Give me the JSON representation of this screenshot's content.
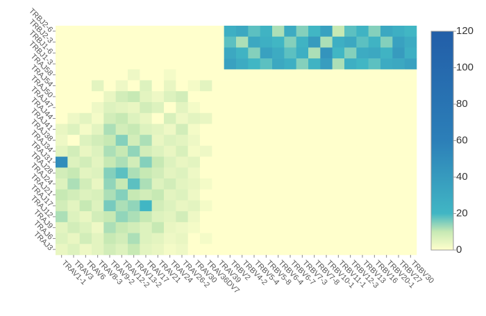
{
  "chart_data": {
    "type": "heatmap",
    "x": [
      "TRAV1-1",
      "TRAV3",
      "TRAV6",
      "TRAV8-3",
      "TRAV9-2",
      "TRAV12-2",
      "TRAV13-2",
      "TRAV17",
      "TRAV21",
      "TRAV24",
      "TRAV26-2",
      "TRAV30",
      "TRAV36DV7",
      "TRAV39",
      "TRBV2",
      "TRBV4-2",
      "TRBV5-4",
      "TRBV5-8",
      "TRBV6-4",
      "TRBV6-7",
      "TRBV7-3",
      "TRBV7-8",
      "TRBV10-1",
      "TRBV11-1",
      "TRBV12-3",
      "TRBV13",
      "TRBV16",
      "TRBV20-1",
      "TRBV27",
      "TRBV30"
    ],
    "y": [
      "TRBJ2-6",
      "TRBJ2-3",
      "TRBJ1-6",
      "TRBJ1-3",
      "TRAJ58",
      "TRAJ54",
      "TRAJ50",
      "TRAJ47",
      "TRAJ44",
      "TRAJ41",
      "TRAJ38",
      "TRAJ34",
      "TRAJ31",
      "TRAJ28",
      "TRAJ24",
      "TRAJ21",
      "TRAJ17",
      "TRAJ12",
      "TRAJ9",
      "TRAJ6",
      "TRAJ3"
    ],
    "values": [
      [
        0,
        0,
        0,
        0,
        0,
        0,
        0,
        0,
        0,
        0,
        0,
        0,
        0,
        0,
        25,
        30,
        18,
        22,
        12,
        28,
        15,
        20,
        35,
        10,
        18,
        22,
        15,
        30,
        25,
        20
      ],
      [
        0,
        0,
        0,
        0,
        0,
        0,
        0,
        0,
        0,
        0,
        0,
        0,
        0,
        0,
        18,
        12,
        30,
        25,
        20,
        15,
        22,
        40,
        12,
        25,
        30,
        18,
        22,
        15,
        35,
        28
      ],
      [
        0,
        0,
        0,
        0,
        0,
        0,
        0,
        0,
        0,
        0,
        0,
        0,
        0,
        0,
        30,
        22,
        15,
        35,
        28,
        18,
        25,
        12,
        45,
        20,
        15,
        28,
        30,
        22,
        40,
        25
      ],
      [
        0,
        0,
        0,
        0,
        0,
        0,
        0,
        0,
        0,
        0,
        0,
        0,
        0,
        0,
        35,
        28,
        20,
        18,
        30,
        25,
        15,
        22,
        38,
        12,
        25,
        20,
        18,
        28,
        30,
        35
      ],
      [
        0,
        0,
        0,
        0,
        0,
        0,
        3,
        0,
        0,
        2,
        0,
        0,
        0,
        0,
        0,
        0,
        0,
        0,
        0,
        0,
        0,
        0,
        0,
        0,
        0,
        0,
        0,
        0,
        0,
        0
      ],
      [
        0,
        0,
        0,
        5,
        0,
        3,
        0,
        6,
        0,
        4,
        0,
        2,
        5,
        0,
        0,
        0,
        0,
        0,
        0,
        0,
        0,
        0,
        0,
        0,
        0,
        0,
        0,
        0,
        0,
        0
      ],
      [
        0,
        0,
        0,
        0,
        4,
        8,
        10,
        5,
        3,
        6,
        8,
        0,
        0,
        0,
        0,
        0,
        0,
        0,
        0,
        0,
        0,
        0,
        0,
        0,
        0,
        0,
        0,
        0,
        0,
        0
      ],
      [
        0,
        0,
        0,
        3,
        6,
        5,
        4,
        8,
        6,
        0,
        5,
        2,
        0,
        0,
        0,
        0,
        0,
        0,
        0,
        0,
        0,
        0,
        0,
        0,
        0,
        0,
        0,
        0,
        0,
        0
      ],
      [
        0,
        3,
        5,
        2,
        8,
        10,
        6,
        4,
        0,
        7,
        3,
        5,
        4,
        0,
        0,
        0,
        0,
        0,
        0,
        0,
        0,
        0,
        0,
        0,
        0,
        0,
        0,
        0,
        0,
        0
      ],
      [
        4,
        6,
        2,
        5,
        12,
        8,
        10,
        6,
        5,
        3,
        8,
        2,
        0,
        0,
        0,
        0,
        0,
        0,
        0,
        0,
        0,
        0,
        0,
        0,
        0,
        0,
        0,
        0,
        0,
        0
      ],
      [
        3,
        0,
        6,
        8,
        10,
        15,
        8,
        12,
        4,
        6,
        5,
        3,
        0,
        0,
        0,
        0,
        0,
        0,
        0,
        0,
        0,
        0,
        0,
        0,
        0,
        0,
        0,
        0,
        0,
        0
      ],
      [
        5,
        8,
        4,
        6,
        12,
        10,
        14,
        8,
        6,
        4,
        7,
        2,
        3,
        0,
        0,
        0,
        0,
        0,
        0,
        0,
        0,
        0,
        0,
        0,
        0,
        0,
        0,
        0,
        0,
        0
      ],
      [
        50,
        6,
        8,
        5,
        10,
        12,
        8,
        15,
        10,
        6,
        4,
        5,
        0,
        0,
        0,
        0,
        0,
        0,
        0,
        0,
        0,
        0,
        0,
        0,
        0,
        0,
        0,
        0,
        0,
        0
      ],
      [
        8,
        10,
        5,
        6,
        15,
        18,
        12,
        10,
        8,
        5,
        6,
        3,
        0,
        0,
        0,
        0,
        0,
        0,
        0,
        0,
        0,
        0,
        0,
        0,
        0,
        0,
        0,
        0,
        0,
        0
      ],
      [
        6,
        12,
        8,
        4,
        14,
        10,
        18,
        12,
        6,
        8,
        5,
        4,
        2,
        0,
        0,
        0,
        0,
        0,
        0,
        0,
        0,
        0,
        0,
        0,
        0,
        0,
        0,
        0,
        0,
        0
      ],
      [
        10,
        8,
        6,
        7,
        12,
        15,
        10,
        8,
        10,
        5,
        6,
        3,
        0,
        0,
        0,
        0,
        0,
        0,
        0,
        0,
        0,
        0,
        0,
        0,
        0,
        0,
        0,
        0,
        0,
        0
      ],
      [
        8,
        5,
        10,
        6,
        16,
        12,
        14,
        20,
        8,
        6,
        4,
        5,
        2,
        0,
        0,
        0,
        0,
        0,
        0,
        0,
        0,
        0,
        0,
        0,
        0,
        0,
        0,
        0,
        0,
        0
      ],
      [
        12,
        6,
        4,
        8,
        10,
        14,
        12,
        10,
        6,
        5,
        8,
        3,
        0,
        0,
        0,
        0,
        0,
        0,
        0,
        0,
        0,
        0,
        0,
        0,
        0,
        0,
        0,
        0,
        0,
        0
      ],
      [
        5,
        8,
        6,
        3,
        12,
        10,
        8,
        6,
        10,
        4,
        3,
        2,
        0,
        0,
        0,
        0,
        0,
        0,
        0,
        0,
        0,
        0,
        0,
        0,
        0,
        0,
        0,
        0,
        0,
        0
      ],
      [
        6,
        4,
        8,
        5,
        10,
        8,
        12,
        6,
        5,
        3,
        4,
        0,
        2,
        0,
        0,
        0,
        0,
        0,
        0,
        0,
        0,
        0,
        0,
        0,
        0,
        0,
        0,
        0,
        0,
        0
      ],
      [
        4,
        6,
        3,
        5,
        8,
        6,
        10,
        5,
        4,
        2,
        3,
        0,
        0,
        0,
        0,
        0,
        0,
        0,
        0,
        0,
        0,
        0,
        0,
        0,
        0,
        0,
        0,
        0,
        0,
        0
      ]
    ],
    "colorscale": [
      [
        0,
        "#ffffcc"
      ],
      [
        10,
        "#c7e9b4"
      ],
      [
        20,
        "#41b6c4"
      ],
      [
        60,
        "#2c7fb8"
      ],
      [
        120,
        "#225ea8"
      ]
    ],
    "clim": [
      0,
      120
    ],
    "cticks": [
      0,
      20,
      40,
      60,
      80,
      100,
      120
    ]
  }
}
